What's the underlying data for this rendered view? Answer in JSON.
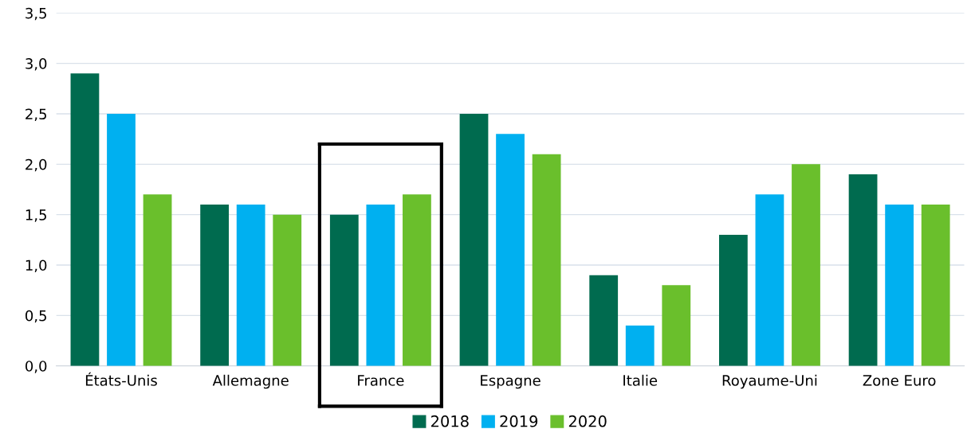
{
  "chart_data": {
    "type": "bar",
    "categories": [
      "États-Unis",
      "Allemagne",
      "France",
      "Espagne",
      "Italie",
      "Royaume-Uni",
      "Zone Euro"
    ],
    "series": [
      {
        "name": "2018",
        "color": "#006b4f",
        "values": [
          2.9,
          1.6,
          1.5,
          2.5,
          0.9,
          1.3,
          1.9
        ]
      },
      {
        "name": "2019",
        "color": "#00b0f0",
        "values": [
          2.5,
          1.6,
          1.6,
          2.3,
          0.4,
          1.7,
          1.6
        ]
      },
      {
        "name": "2020",
        "color": "#6abf2c",
        "values": [
          1.7,
          1.5,
          1.7,
          2.1,
          0.8,
          2.0,
          1.6
        ]
      }
    ],
    "ylim": [
      0,
      3.5
    ],
    "yticks": [
      {
        "value": 0,
        "label": "0,0"
      },
      {
        "value": 0.5,
        "label": "0,5"
      },
      {
        "value": 1,
        "label": "1,0"
      },
      {
        "value": 1.5,
        "label": "1,5"
      },
      {
        "value": 2,
        "label": "2,0"
      },
      {
        "value": 2.5,
        "label": "2,5"
      },
      {
        "value": 3,
        "label": "3,0"
      },
      {
        "value": 3.5,
        "label": "3,5"
      }
    ],
    "grid": "y",
    "legend": "bottom"
  }
}
